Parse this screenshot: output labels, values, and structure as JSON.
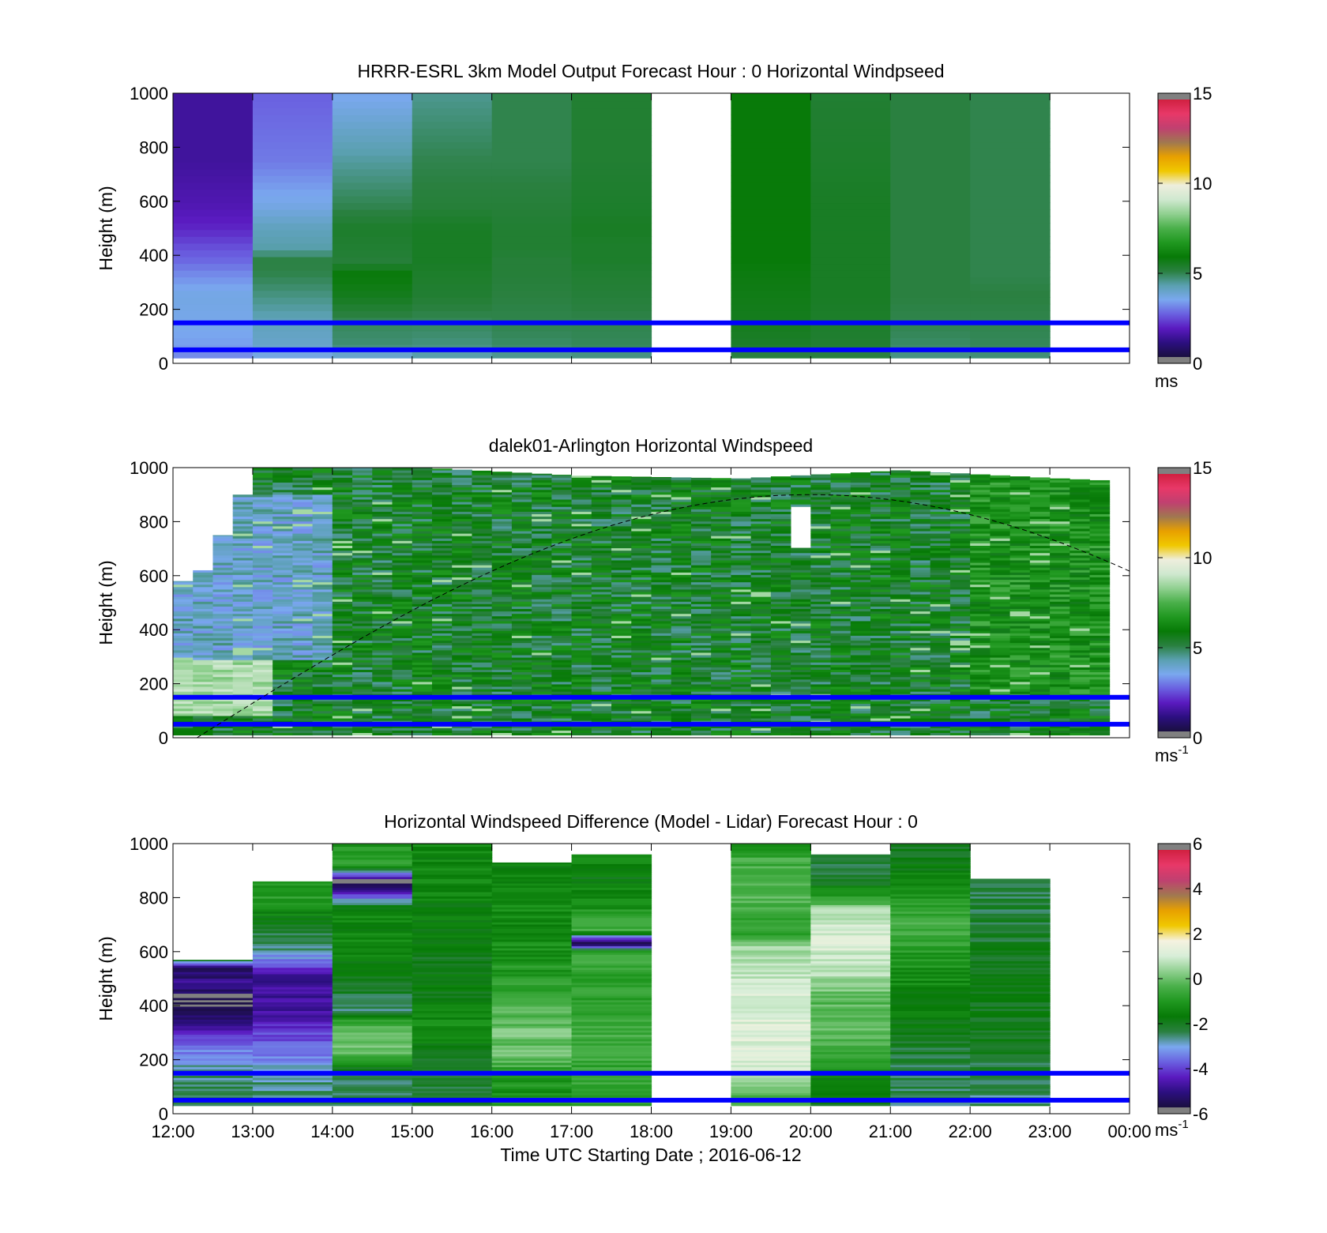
{
  "colormap": {
    "speed": [
      "#1a0f3f",
      "#2c0f80",
      "#5a1ac0",
      "#6a60e0",
      "#7aa8ef",
      "#5aa0b0",
      "#2a8040",
      "#077a07",
      "#209820",
      "#4ab04a",
      "#90d090",
      "#cfe8cf",
      "#eeeedd",
      "#f0c800",
      "#e8a000",
      "#a07850",
      "#c04070",
      "#e83868",
      "#d02040"
    ],
    "diff": [
      "#1a0f3f",
      "#2c0f80",
      "#5a1ac0",
      "#6a60e0",
      "#7aa8ef",
      "#2a8040",
      "#077a07",
      "#209820",
      "#4ab04a",
      "#90d090",
      "#d8eed8",
      "#f5f2e0",
      "#f0c800",
      "#e8a000",
      "#a07850",
      "#c04070",
      "#e83868",
      "#d02040"
    ],
    "nan_color": "#808080",
    "reference_line_color": "#0000ff"
  },
  "chart_data": [
    {
      "type": "heatmap",
      "title": "HRRR-ESRL 3km Model Output   Forecast Hour : 0 Horizontal Windpseed",
      "ylabel": "Height (m)",
      "xlabel": "",
      "x_range": [
        "12:00",
        "00:00"
      ],
      "ylim": [
        0,
        1000
      ],
      "yticks": [
        "0",
        "200",
        "400",
        "600",
        "800",
        "1000"
      ],
      "x_tick_labels_shown": false,
      "colorbar": {
        "clim": [
          0,
          15
        ],
        "ticks": [
          "0",
          "5",
          "10",
          "15"
        ],
        "unit": "ms",
        "unit_sup": "",
        "scale": "speed"
      },
      "reference_heights": [
        50,
        150
      ],
      "hour_starts": [
        "12:00",
        "13:00",
        "14:00",
        "15:00",
        "16:00",
        "17:00",
        "19:00",
        "20:00",
        "21:00",
        "22:00"
      ],
      "hour_profiles": [
        [
          [
            35,
            3.0
          ],
          [
            60,
            3.2
          ],
          [
            150,
            3.4
          ],
          [
            250,
            3.5
          ],
          [
            330,
            3.0
          ],
          [
            380,
            2.6
          ],
          [
            430,
            2.3
          ],
          [
            500,
            1.8
          ],
          [
            580,
            1.5
          ],
          [
            750,
            1.2
          ],
          [
            1000,
            1.2
          ]
        ],
        [
          [
            35,
            3.5
          ],
          [
            60,
            3.8
          ],
          [
            150,
            4.0
          ],
          [
            250,
            4.5
          ],
          [
            330,
            4.9
          ],
          [
            380,
            5.0
          ],
          [
            430,
            4.2
          ],
          [
            500,
            4.0
          ],
          [
            580,
            3.5
          ],
          [
            750,
            2.8
          ],
          [
            1000,
            2.5
          ]
        ],
        [
          [
            35,
            3.8
          ],
          [
            60,
            4.6
          ],
          [
            150,
            4.8
          ],
          [
            250,
            5.5
          ],
          [
            330,
            5.8
          ],
          [
            380,
            5.1
          ],
          [
            430,
            5.2
          ],
          [
            500,
            5.3
          ],
          [
            580,
            4.9
          ],
          [
            750,
            4.3
          ],
          [
            1000,
            3.3
          ]
        ],
        [
          [
            35,
            4.2
          ],
          [
            60,
            4.5
          ],
          [
            150,
            4.8
          ],
          [
            250,
            5.2
          ],
          [
            330,
            5.3
          ],
          [
            380,
            5.4
          ],
          [
            430,
            5.4
          ],
          [
            500,
            5.4
          ],
          [
            580,
            5.1
          ],
          [
            750,
            4.9
          ],
          [
            1000,
            4.4
          ]
        ],
        [
          [
            35,
            4.4
          ],
          [
            60,
            4.7
          ],
          [
            150,
            4.9
          ],
          [
            250,
            5.0
          ],
          [
            330,
            5.1
          ],
          [
            380,
            5.1
          ],
          [
            430,
            5.2
          ],
          [
            500,
            5.2
          ],
          [
            580,
            5.1
          ],
          [
            750,
            4.9
          ],
          [
            1000,
            4.9
          ]
        ],
        [
          [
            35,
            4.5
          ],
          [
            60,
            4.8
          ],
          [
            150,
            4.9
          ],
          [
            250,
            5.1
          ],
          [
            330,
            5.2
          ],
          [
            380,
            5.3
          ],
          [
            430,
            5.3
          ],
          [
            500,
            5.4
          ],
          [
            580,
            5.3
          ],
          [
            750,
            5.2
          ],
          [
            1000,
            5.2
          ]
        ],
        [
          [
            35,
            5.0
          ],
          [
            60,
            5.3
          ],
          [
            150,
            5.5
          ],
          [
            250,
            5.6
          ],
          [
            330,
            5.7
          ],
          [
            380,
            5.8
          ],
          [
            430,
            5.8
          ],
          [
            500,
            5.8
          ],
          [
            580,
            5.8
          ],
          [
            750,
            5.8
          ],
          [
            1000,
            5.8
          ]
        ],
        [
          [
            35,
            5.0
          ],
          [
            60,
            5.2
          ],
          [
            150,
            5.3
          ],
          [
            250,
            5.4
          ],
          [
            330,
            5.4
          ],
          [
            380,
            5.4
          ],
          [
            430,
            5.4
          ],
          [
            500,
            5.4
          ],
          [
            580,
            5.4
          ],
          [
            750,
            5.3
          ],
          [
            1000,
            5.2
          ]
        ],
        [
          [
            35,
            4.5
          ],
          [
            60,
            4.7
          ],
          [
            150,
            4.9
          ],
          [
            250,
            5.0
          ],
          [
            330,
            5.0
          ],
          [
            380,
            5.0
          ],
          [
            430,
            5.0
          ],
          [
            500,
            5.0
          ],
          [
            580,
            5.0
          ],
          [
            750,
            5.0
          ],
          [
            1000,
            5.0
          ]
        ],
        [
          [
            35,
            4.6
          ],
          [
            60,
            4.8
          ],
          [
            150,
            4.9
          ],
          [
            250,
            5.0
          ],
          [
            330,
            4.9
          ],
          [
            380,
            4.9
          ],
          [
            430,
            4.9
          ],
          [
            500,
            4.9
          ],
          [
            580,
            4.9
          ],
          [
            750,
            4.9
          ],
          [
            1000,
            4.9
          ]
        ]
      ],
      "sun_curve": false
    },
    {
      "type": "heatmap",
      "title": "dalek01-Arlington  Horizontal Windspeed",
      "ylabel": "Height (m)",
      "xlabel": "",
      "x_range": [
        "12:00",
        "00:00"
      ],
      "ylim": [
        0,
        1000
      ],
      "yticks": [
        "0",
        "200",
        "400",
        "600",
        "800",
        "1000"
      ],
      "x_tick_labels_shown": false,
      "colorbar": {
        "clim": [
          0,
          15
        ],
        "ticks": [
          "0",
          "5",
          "10",
          "15"
        ],
        "unit": "ms",
        "unit_sup": "-1",
        "scale": "speed"
      },
      "reference_heights": [
        50,
        150
      ],
      "scan_interval_minutes": 15,
      "data_end": "23:45",
      "top_profile": [
        [
          0,
          580
        ],
        [
          0.25,
          620
        ],
        [
          0.5,
          750
        ],
        [
          0.75,
          900
        ],
        [
          1,
          1000
        ],
        [
          3,
          1000
        ],
        [
          5,
          970
        ],
        [
          7,
          960
        ],
        [
          9,
          990
        ],
        [
          11,
          960
        ],
        [
          11.75,
          950
        ]
      ],
      "sun_curve": true,
      "sun_curve_peak_m": 900,
      "sun_curve_peak_time": "20:00"
    },
    {
      "type": "heatmap",
      "title": "Horizontal Windspeed Difference (Model - Lidar) Forecast Hour : 0",
      "ylabel": "Height (m)",
      "xlabel": "Time UTC  Starting Date ; 2016-06-12",
      "x_range": [
        "12:00",
        "00:00"
      ],
      "xticks": [
        "12:00",
        "13:00",
        "14:00",
        "15:00",
        "16:00",
        "17:00",
        "18:00",
        "19:00",
        "20:00",
        "21:00",
        "22:00",
        "23:00",
        "00:00"
      ],
      "ylim": [
        0,
        1000
      ],
      "yticks": [
        "0",
        "200",
        "400",
        "600",
        "800",
        "1000"
      ],
      "x_tick_labels_shown": true,
      "colorbar": {
        "clim": [
          -6,
          6
        ],
        "ticks": [
          "-6",
          "-4",
          "-2",
          "0",
          "2",
          "4",
          "6"
        ],
        "unit": "ms",
        "unit_sup": "-1",
        "scale": "diff"
      },
      "reference_heights": [
        50,
        150
      ],
      "hour_starts": [
        "12:00",
        "13:00",
        "14:00",
        "15:00",
        "16:00",
        "17:00",
        "19:00",
        "20:00",
        "21:00",
        "22:00"
      ],
      "hour_tops": [
        570,
        860,
        1000,
        1000,
        930,
        960,
        1000,
        960,
        1000,
        870
      ],
      "hour_profiles": [
        [
          [
            50,
            -2.5
          ],
          [
            150,
            -2.8
          ],
          [
            230,
            -3.5
          ],
          [
            280,
            -4.3
          ],
          [
            330,
            -5.2
          ],
          [
            370,
            -5.5
          ],
          [
            440,
            -6.0
          ],
          [
            480,
            -5.2
          ],
          [
            540,
            -5.6
          ],
          [
            570,
            -2.5
          ]
        ],
        [
          [
            50,
            -2.6
          ],
          [
            150,
            -2.8
          ],
          [
            210,
            -3.5
          ],
          [
            300,
            -4.2
          ],
          [
            400,
            -5.0
          ],
          [
            520,
            -5.0
          ],
          [
            560,
            -3.6
          ],
          [
            640,
            -2.5
          ],
          [
            720,
            -1.8
          ],
          [
            800,
            -1.0
          ],
          [
            860,
            -1.0
          ]
        ],
        [
          [
            50,
            -2.4
          ],
          [
            150,
            -2.5
          ],
          [
            230,
            0.0
          ],
          [
            330,
            -0.4
          ],
          [
            380,
            -2.6
          ],
          [
            500,
            -2.0
          ],
          [
            620,
            -1.5
          ],
          [
            760,
            -1.5
          ],
          [
            860,
            -6.5
          ],
          [
            920,
            -0.5
          ],
          [
            1000,
            -1.2
          ]
        ],
        [
          [
            50,
            -2.3
          ],
          [
            150,
            -2.4
          ],
          [
            230,
            -1.8
          ],
          [
            330,
            -1.4
          ],
          [
            450,
            -1.8
          ],
          [
            550,
            -2.0
          ],
          [
            700,
            -1.8
          ],
          [
            850,
            -1.5
          ],
          [
            1000,
            -1.5
          ]
        ],
        [
          [
            50,
            -1.2
          ],
          [
            150,
            -1.1
          ],
          [
            220,
            0.2
          ],
          [
            250,
            -0.2
          ],
          [
            300,
            0.1
          ],
          [
            370,
            -0.3
          ],
          [
            500,
            -1.0
          ],
          [
            700,
            -1.4
          ],
          [
            930,
            -1.6
          ]
        ],
        [
          [
            50,
            -0.8
          ],
          [
            150,
            -0.7
          ],
          [
            300,
            -0.6
          ],
          [
            500,
            -0.9
          ],
          [
            600,
            -0.4
          ],
          [
            630,
            -6.5
          ],
          [
            680,
            -0.5
          ],
          [
            760,
            -1.2
          ],
          [
            880,
            -1.8
          ],
          [
            960,
            -1.4
          ]
        ],
        [
          [
            50,
            -0.6
          ],
          [
            150,
            1.2
          ],
          [
            300,
            1.2
          ],
          [
            450,
            1.1
          ],
          [
            560,
            0.8
          ],
          [
            620,
            0.6
          ],
          [
            650,
            -0.8
          ],
          [
            850,
            -0.2
          ],
          [
            950,
            -0.6
          ],
          [
            1000,
            -1.2
          ]
        ],
        [
          [
            50,
            -2.0
          ],
          [
            150,
            -1.4
          ],
          [
            250,
            -0.5
          ],
          [
            350,
            0.0
          ],
          [
            420,
            -0.3
          ],
          [
            550,
            1.0
          ],
          [
            700,
            1.1
          ],
          [
            760,
            0.4
          ],
          [
            860,
            -2.2
          ],
          [
            960,
            -2.5
          ]
        ],
        [
          [
            50,
            -2.6
          ],
          [
            150,
            -2.5
          ],
          [
            250,
            -2.2
          ],
          [
            380,
            -1.8
          ],
          [
            550,
            -1.2
          ],
          [
            700,
            -0.5
          ],
          [
            800,
            -1.0
          ],
          [
            900,
            -1.8
          ],
          [
            1000,
            -2.2
          ]
        ],
        [
          [
            50,
            -2.7
          ],
          [
            150,
            -2.4
          ],
          [
            300,
            -2.0
          ],
          [
            500,
            -1.9
          ],
          [
            700,
            -2.3
          ],
          [
            870,
            -2.5
          ]
        ]
      ],
      "sun_curve": false
    }
  ]
}
